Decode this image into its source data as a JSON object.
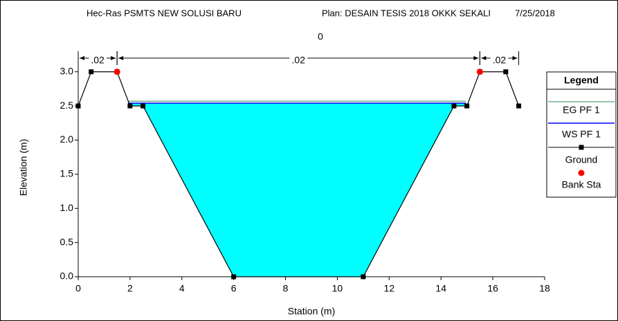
{
  "chart_data": {
    "type": "cross-section",
    "title": [
      "Hec-Ras PSMTS NEW SOLUSI BARU",
      "Plan: DESAIN TESIS 2018 OKKK SEKALI",
      "7/25/2018"
    ],
    "subtitle": "0",
    "x_label": "Station (m)",
    "y_label": "Elevation (m)",
    "xlim": [
      0,
      18
    ],
    "xticks": [
      0,
      2,
      4,
      6,
      8,
      10,
      12,
      14,
      16,
      18
    ],
    "ylim": [
      0,
      3.2
    ],
    "yticks": [
      {
        "value": 0,
        "label": "0.0"
      },
      0.5,
      {
        "value": 1,
        "label": "1.0"
      },
      1.5,
      {
        "value": 2,
        "label": "2.0"
      },
      2.5,
      {
        "value": 3,
        "label": "3.0"
      }
    ],
    "legend_title": "Legend",
    "water_color": "#00ffff",
    "series": [
      {
        "name": "EG PF 1",
        "color": "#2e8b57",
        "x": [
          1.92,
          14.96
        ],
        "values": [
          2.57,
          2.57
        ]
      },
      {
        "name": "WS PF 1",
        "color": "#0000ff",
        "x": [
          1.92,
          14.96
        ],
        "values": [
          2.54,
          2.54
        ]
      },
      {
        "name": "Ground",
        "color": "#000000",
        "x": [
          0,
          0.5,
          1.5,
          2,
          2.5,
          6,
          11,
          14.5,
          15,
          15.5,
          16.5,
          17
        ],
        "values": [
          2.5,
          3.0,
          3.0,
          2.5,
          2.5,
          0,
          0,
          2.5,
          2.5,
          3.0,
          3.0,
          2.5
        ]
      },
      {
        "name": "Bank Sta",
        "color": "#ff0000",
        "x": [
          1.5,
          15.5
        ],
        "values": [
          3.0,
          3.0
        ]
      }
    ],
    "annotations": [
      {
        "text": ".02",
        "from": 0,
        "to": 1.5
      },
      {
        "text": ".02",
        "from": 1.5,
        "to": 15.5
      },
      {
        "text": ".02",
        "from": 15.5,
        "to": 17
      }
    ]
  }
}
